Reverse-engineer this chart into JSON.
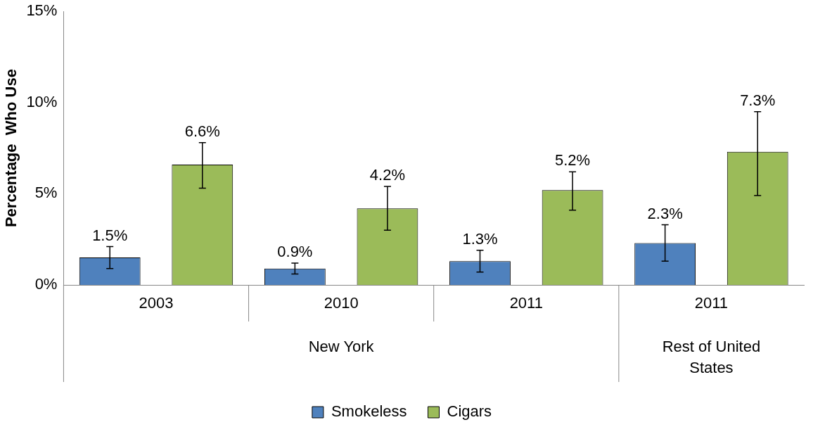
{
  "chart_data": {
    "type": "bar",
    "ylabel": "Percentage  Who Use",
    "categories": [
      "2003",
      "2010",
      "2011",
      "2011"
    ],
    "annotations": [
      "New York",
      "Rest of United States"
    ],
    "ylim": [
      0,
      15
    ],
    "yticks": [
      {
        "value": 0,
        "label": "0%"
      },
      {
        "value": 5,
        "label": "5%"
      },
      {
        "value": 10,
        "label": "10%"
      },
      {
        "value": 15,
        "label": "15%"
      }
    ],
    "grid": false,
    "legend": "bottom",
    "series": [
      {
        "name": "Smokeless",
        "color": "#4f81bd",
        "values": [
          1.5,
          0.9,
          1.3,
          2.3
        ],
        "errors": [
          [
            0.9,
            2.1
          ],
          [
            0.6,
            1.2
          ],
          [
            0.7,
            1.9
          ],
          [
            1.3,
            3.3
          ]
        ],
        "value_labels": [
          "1.5%",
          "0.9%",
          "1.3%",
          "2.3%"
        ]
      },
      {
        "name": "Cigars",
        "color": "#9bbb59",
        "values": [
          6.6,
          4.2,
          5.2,
          7.3
        ],
        "errors": [
          [
            5.3,
            7.8
          ],
          [
            3.0,
            5.4
          ],
          [
            4.1,
            6.2
          ],
          [
            4.9,
            9.5
          ]
        ],
        "value_labels": [
          "6.6%",
          "4.2%",
          "5.2%",
          "7.3%"
        ]
      }
    ]
  }
}
